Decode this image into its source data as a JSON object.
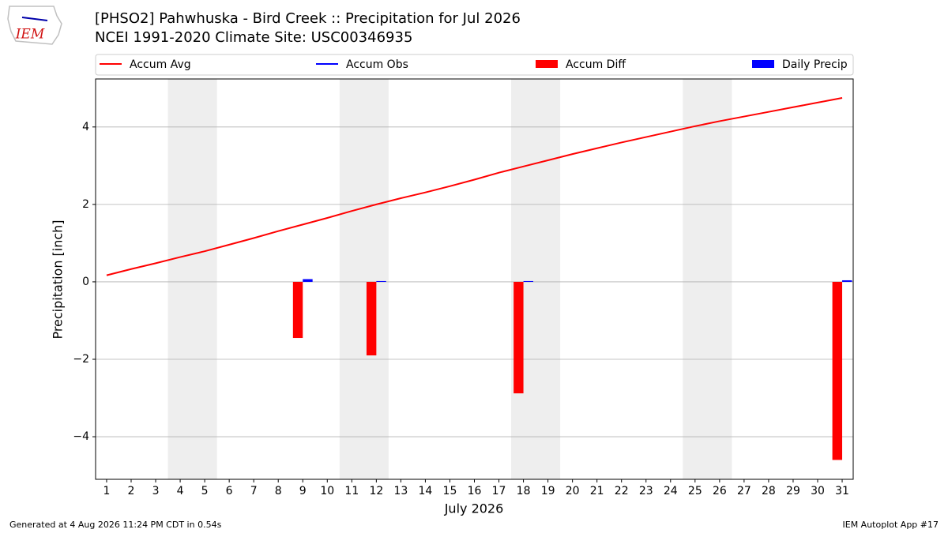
{
  "chart_data": {
    "type": "line",
    "title": "[PHSO2] Pahwhuska - Bird Creek :: Precipitation for Jul 2026",
    "subtitle": "NCEI 1991-2020 Climate Site: USC00346935",
    "xlabel": "July 2026",
    "ylabel": "Precipitation [inch]",
    "logo": "IEM",
    "footer_left": "Generated at 4 Aug 2026 11:24 PM CDT in 0.54s",
    "footer_right": "IEM Autoplot App #17",
    "x": [
      1,
      2,
      3,
      4,
      5,
      6,
      7,
      8,
      9,
      10,
      11,
      12,
      13,
      14,
      15,
      16,
      17,
      18,
      19,
      20,
      21,
      22,
      23,
      24,
      25,
      26,
      27,
      28,
      29,
      30,
      31
    ],
    "xlim": [
      0.55,
      31.45
    ],
    "xticks": [
      1,
      2,
      3,
      4,
      5,
      6,
      7,
      8,
      9,
      10,
      11,
      12,
      13,
      14,
      15,
      16,
      17,
      18,
      19,
      20,
      21,
      22,
      23,
      24,
      25,
      26,
      27,
      28,
      29,
      30,
      31
    ],
    "ylim": [
      -5.1,
      5.24
    ],
    "yticks": [
      {
        "value": -4,
        "label": "−4"
      },
      {
        "value": -2,
        "label": "−2"
      },
      0,
      2,
      4
    ],
    "grid": true,
    "shaded_spans": [
      [
        3.5,
        5.5
      ],
      [
        10.5,
        12.5
      ],
      [
        17.5,
        19.5
      ],
      [
        24.5,
        26.5
      ]
    ],
    "shade_color": "#eeeeee",
    "legend": "top",
    "series": [
      {
        "name": "Accum Avg",
        "type": "line",
        "color": "#ff0000",
        "values": [
          0.17,
          0.33,
          0.48,
          0.64,
          0.79,
          0.96,
          1.13,
          1.31,
          1.48,
          1.65,
          1.83,
          2.0,
          2.16,
          2.31,
          2.47,
          2.64,
          2.82,
          2.98,
          3.14,
          3.3,
          3.45,
          3.6,
          3.74,
          3.88,
          4.02,
          4.15,
          4.27,
          4.39,
          4.51,
          4.63,
          4.75
        ]
      },
      {
        "name": "Accum Obs",
        "type": "line",
        "color": "#0000ff"
      },
      {
        "name": "Accum Diff",
        "type": "bar",
        "side": "left",
        "color": "#ff0000",
        "values": [
          null,
          null,
          null,
          null,
          null,
          null,
          null,
          null,
          -1.45,
          null,
          null,
          -1.9,
          null,
          null,
          null,
          null,
          null,
          -2.88,
          null,
          null,
          null,
          null,
          null,
          null,
          null,
          null,
          null,
          null,
          null,
          null,
          -4.6
        ]
      },
      {
        "name": "Daily Precip",
        "type": "bar",
        "side": "right",
        "color": "#0000ff",
        "values": [
          null,
          null,
          null,
          null,
          null,
          null,
          null,
          null,
          0.07,
          null,
          null,
          0.02,
          null,
          null,
          null,
          null,
          null,
          0.02,
          null,
          null,
          null,
          null,
          null,
          null,
          null,
          null,
          null,
          null,
          null,
          null,
          0.04
        ]
      }
    ]
  }
}
